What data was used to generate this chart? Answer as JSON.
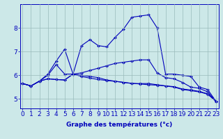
{
  "xlabel": "Graphe des températures (°c)",
  "hours": [
    0,
    1,
    2,
    3,
    4,
    5,
    6,
    7,
    8,
    9,
    10,
    11,
    12,
    13,
    14,
    15,
    16,
    17,
    18,
    19,
    20,
    21,
    22,
    23
  ],
  "line_peak": [
    5.65,
    5.55,
    5.75,
    6.05,
    6.6,
    7.1,
    6.05,
    7.25,
    7.5,
    7.25,
    7.2,
    7.6,
    7.95,
    8.45,
    8.5,
    8.55,
    8.0,
    6.05,
    6.05,
    6.0,
    5.95,
    5.5,
    5.4,
    4.9
  ],
  "line_mid": [
    5.65,
    5.55,
    5.75,
    6.0,
    6.45,
    6.05,
    6.05,
    6.0,
    5.95,
    5.9,
    5.8,
    5.75,
    5.7,
    5.65,
    5.65,
    5.65,
    5.6,
    5.55,
    5.5,
    5.4,
    5.35,
    5.3,
    5.2,
    4.9
  ],
  "line_flat1": [
    5.65,
    5.55,
    5.75,
    5.85,
    5.82,
    5.8,
    6.05,
    6.1,
    6.2,
    6.3,
    6.4,
    6.5,
    6.55,
    6.6,
    6.65,
    6.65,
    6.1,
    5.9,
    5.85,
    5.7,
    5.5,
    5.45,
    5.3,
    4.9
  ],
  "line_flat2": [
    5.65,
    5.55,
    5.75,
    5.85,
    5.82,
    5.8,
    6.05,
    5.95,
    5.88,
    5.82,
    5.78,
    5.74,
    5.7,
    5.66,
    5.63,
    5.6,
    5.58,
    5.55,
    5.52,
    5.42,
    5.38,
    5.32,
    5.22,
    4.9
  ],
  "line_color": "#0000bb",
  "bg_color": "#cce8e8",
  "grid_color": "#99bbbb",
  "ylim_min": 4.6,
  "ylim_max": 9.0,
  "yticks": [
    5,
    6,
    7,
    8
  ],
  "tick_fontsize": 6.5,
  "xlabel_fontsize": 6.5,
  "lw": 0.8,
  "markersize": 2.0
}
